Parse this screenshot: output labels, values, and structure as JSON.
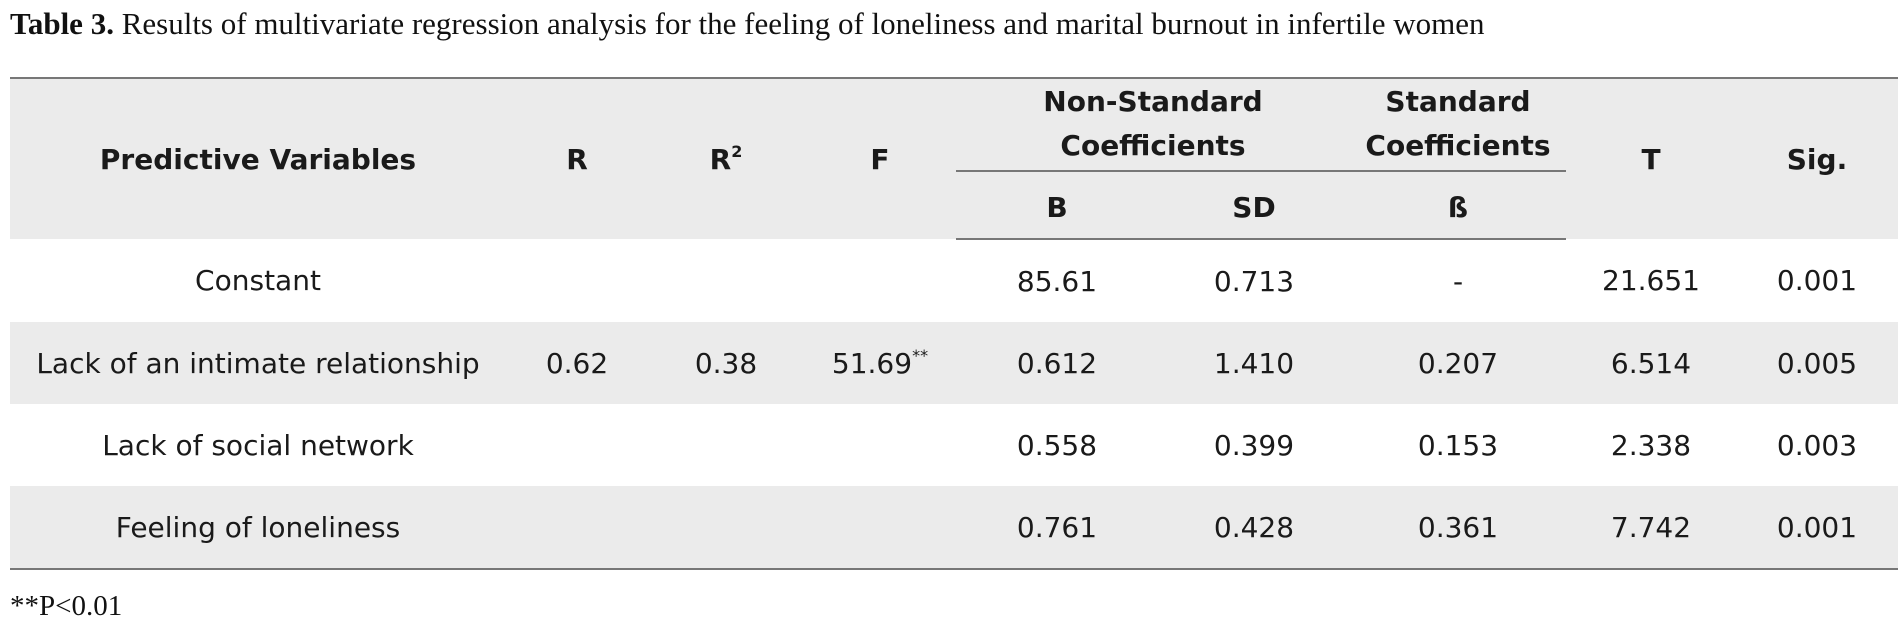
{
  "caption": {
    "label": "Table 3.",
    "text": " Results of multivariate regression analysis for the feeling of loneliness and marital burnout in infertile women"
  },
  "headers": {
    "predictive": "Predictive Variables",
    "r": "R",
    "r2_base": "R",
    "r2_sup": "2",
    "f": "F",
    "nonstd_line1": "Non-Standard",
    "nonstd_line2": "Coefficients",
    "std_line1": "Standard",
    "std_line2": "Coefficients",
    "t": "T",
    "sig": "Sig.",
    "b": "B",
    "sd": "SD",
    "beta": "ß"
  },
  "rows": [
    {
      "variable": "Constant",
      "r": "",
      "r2": "",
      "f": "",
      "f_sup": "",
      "b": "85.61",
      "sd": "0.713",
      "beta": "-",
      "t": "21.651",
      "sig": "0.001"
    },
    {
      "variable": "Lack of an intimate relationship",
      "r": "0.62",
      "r2": "0.38",
      "f": "51.69",
      "f_sup": "**",
      "b": "0.612",
      "sd": "1.410",
      "beta": "0.207",
      "t": "6.514",
      "sig": "0.005"
    },
    {
      "variable": "Lack of social network",
      "r": "",
      "r2": "",
      "f": "",
      "f_sup": "",
      "b": "0.558",
      "sd": "0.399",
      "beta": "0.153",
      "t": "2.338",
      "sig": "0.003"
    },
    {
      "variable": "Feeling of loneliness",
      "r": "",
      "r2": "",
      "f": "",
      "f_sup": "",
      "b": "0.761",
      "sd": "0.428",
      "beta": "0.361",
      "t": "7.742",
      "sig": "0.001"
    }
  ],
  "footnote": "**P<0.01"
}
